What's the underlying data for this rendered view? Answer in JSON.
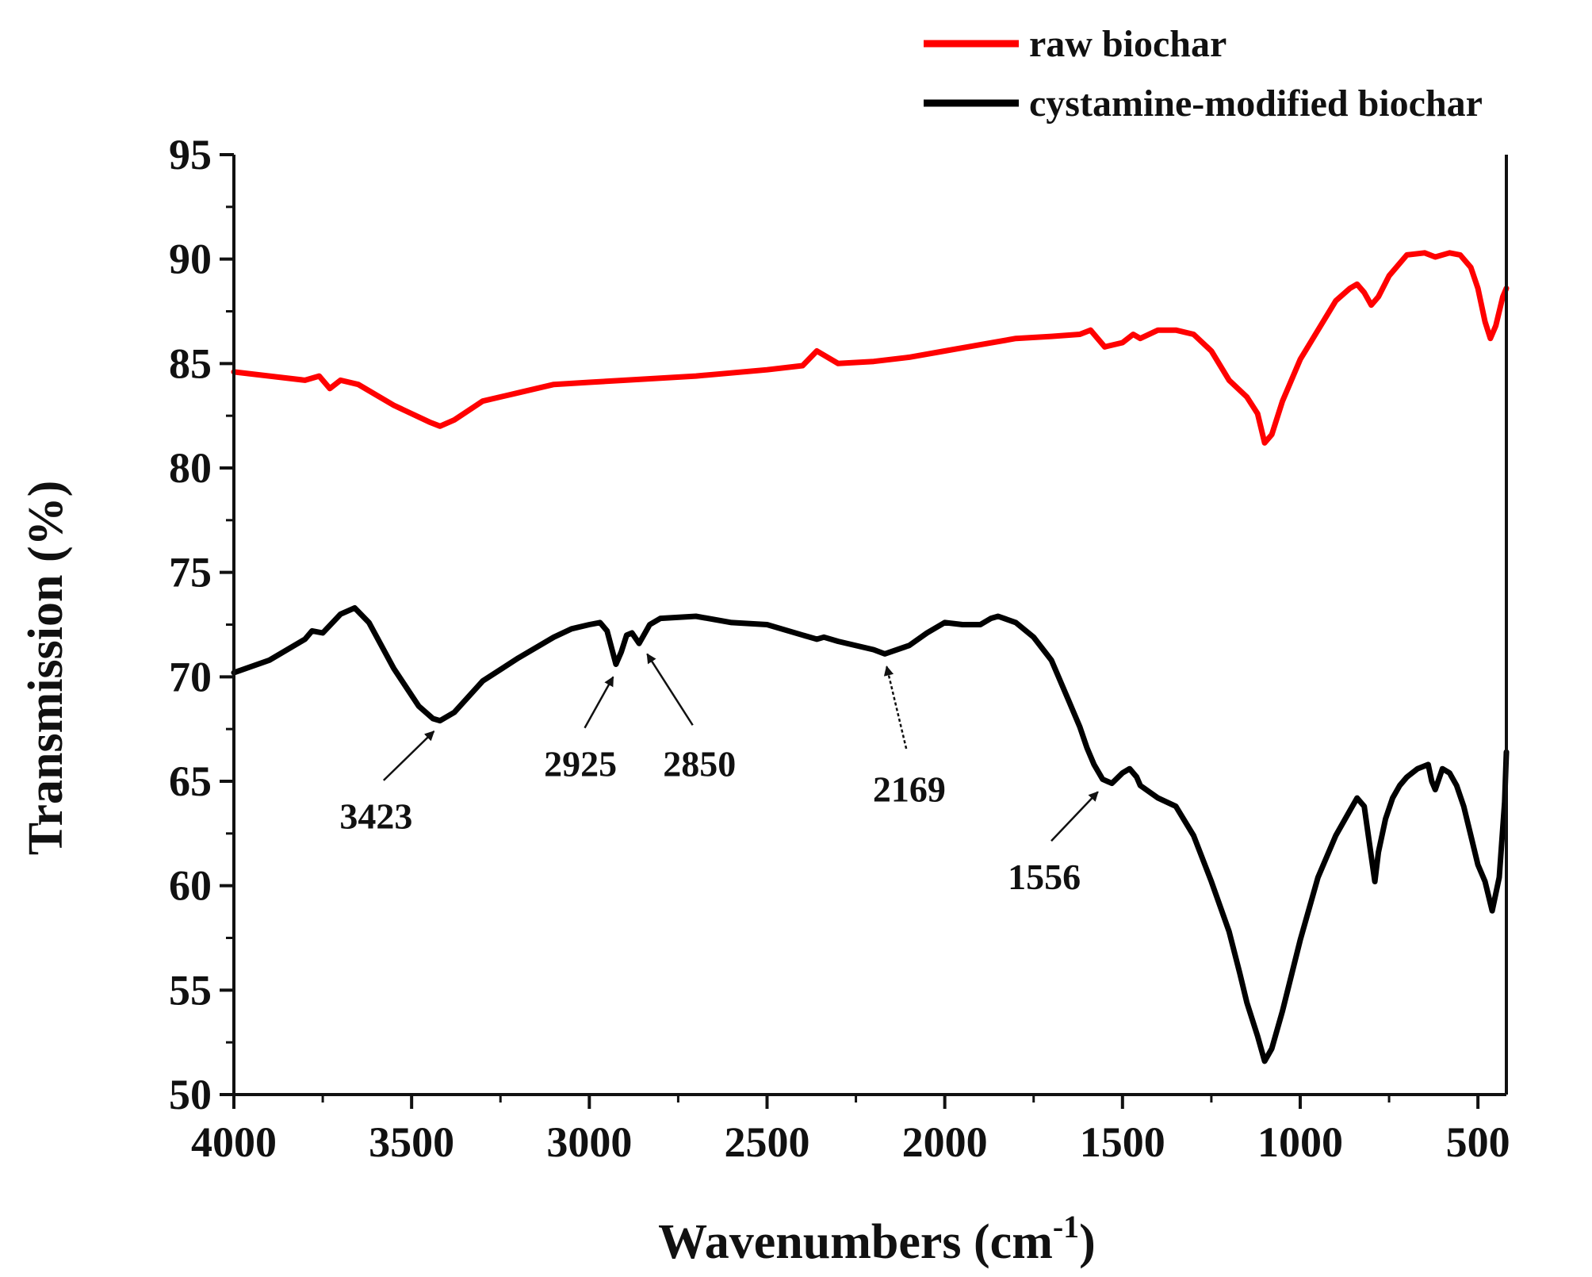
{
  "chart_data": {
    "type": "line",
    "title": "",
    "xlabel": "Wavenumbers (cm",
    "xlabel_sup": "-1",
    "xlabel_close": ")",
    "ylabel": "Transmission (%)",
    "xlim": [
      4000,
      420
    ],
    "ylim": [
      50,
      95
    ],
    "x_reversed": true,
    "x_ticks": [
      "4000",
      "3500",
      "3000",
      "2500",
      "2000",
      "1500",
      "1000",
      "500"
    ],
    "y_ticks": [
      "50",
      "55",
      "60",
      "65",
      "70",
      "75",
      "80",
      "85",
      "90",
      "95"
    ],
    "grid": false,
    "legend_position": "top-right (outside plot)",
    "series": [
      {
        "name": "raw biochar",
        "color": "#ff0000",
        "x": [
          4000,
          3900,
          3800,
          3760,
          3730,
          3700,
          3650,
          3550,
          3450,
          3420,
          3380,
          3300,
          3200,
          3100,
          3000,
          2900,
          2700,
          2500,
          2400,
          2360,
          2330,
          2300,
          2200,
          2100,
          2000,
          1900,
          1800,
          1700,
          1620,
          1590,
          1550,
          1500,
          1470,
          1450,
          1400,
          1350,
          1300,
          1250,
          1200,
          1150,
          1120,
          1100,
          1080,
          1050,
          1000,
          950,
          900,
          860,
          840,
          820,
          800,
          780,
          750,
          700,
          650,
          620,
          580,
          550,
          520,
          500,
          480,
          465,
          450,
          430,
          420
        ],
        "y": [
          84.6,
          84.4,
          84.2,
          84.4,
          83.8,
          84.2,
          84.0,
          83.0,
          82.2,
          82.0,
          82.3,
          83.2,
          83.6,
          84.0,
          84.1,
          84.2,
          84.4,
          84.7,
          84.9,
          85.6,
          85.3,
          85.0,
          85.1,
          85.3,
          85.6,
          85.9,
          86.2,
          86.3,
          86.4,
          86.6,
          85.8,
          86.0,
          86.4,
          86.2,
          86.6,
          86.6,
          86.4,
          85.6,
          84.2,
          83.4,
          82.6,
          81.2,
          81.6,
          83.2,
          85.2,
          86.6,
          88.0,
          88.6,
          88.8,
          88.4,
          87.8,
          88.2,
          89.2,
          90.2,
          90.3,
          90.1,
          90.3,
          90.2,
          89.6,
          88.6,
          87.0,
          86.2,
          86.8,
          88.2,
          88.6
        ]
      },
      {
        "name": "cystamine-modified biochar",
        "color": "#000000",
        "x": [
          4000,
          3900,
          3800,
          3780,
          3750,
          3700,
          3660,
          3620,
          3550,
          3480,
          3440,
          3420,
          3380,
          3300,
          3200,
          3100,
          3050,
          3000,
          2970,
          2950,
          2925,
          2910,
          2895,
          2880,
          2860,
          2850,
          2830,
          2800,
          2700,
          2600,
          2500,
          2400,
          2360,
          2340,
          2300,
          2200,
          2169,
          2100,
          2050,
          2000,
          1950,
          1900,
          1870,
          1850,
          1800,
          1750,
          1700,
          1650,
          1620,
          1600,
          1580,
          1556,
          1530,
          1500,
          1480,
          1460,
          1450,
          1400,
          1350,
          1300,
          1250,
          1200,
          1170,
          1150,
          1120,
          1100,
          1080,
          1050,
          1000,
          950,
          900,
          860,
          840,
          820,
          800,
          790,
          780,
          760,
          740,
          720,
          700,
          670,
          640,
          630,
          620,
          600,
          580,
          560,
          540,
          520,
          500,
          480,
          460,
          440,
          425,
          420
        ],
        "y": [
          70.2,
          70.8,
          71.8,
          72.2,
          72.1,
          73.0,
          73.3,
          72.6,
          70.4,
          68.6,
          68.0,
          67.9,
          68.3,
          69.8,
          70.9,
          71.9,
          72.3,
          72.5,
          72.6,
          72.2,
          70.6,
          71.2,
          72.0,
          72.1,
          71.6,
          71.9,
          72.5,
          72.8,
          72.9,
          72.6,
          72.5,
          72.0,
          71.8,
          71.9,
          71.7,
          71.3,
          71.1,
          71.5,
          72.1,
          72.6,
          72.5,
          72.5,
          72.8,
          72.9,
          72.6,
          71.9,
          70.8,
          68.8,
          67.6,
          66.6,
          65.8,
          65.1,
          64.9,
          65.4,
          65.6,
          65.2,
          64.8,
          64.2,
          63.8,
          62.4,
          60.2,
          57.8,
          55.8,
          54.4,
          52.8,
          51.6,
          52.2,
          54.0,
          57.4,
          60.4,
          62.4,
          63.6,
          64.2,
          63.8,
          61.4,
          60.2,
          61.6,
          63.2,
          64.2,
          64.8,
          65.2,
          65.6,
          65.8,
          65.0,
          64.6,
          65.6,
          65.4,
          64.8,
          63.8,
          62.4,
          61.0,
          60.2,
          58.8,
          60.4,
          64.0,
          66.4
        ]
      }
    ],
    "annotations": [
      {
        "label": "3423",
        "x": 3423,
        "y": 68.0,
        "tx": 3600,
        "ty": 63.5
      },
      {
        "label": "2925",
        "x": 2925,
        "y": 70.6,
        "tx": 3025,
        "ty": 66.0
      },
      {
        "label": "2850",
        "x": 2850,
        "y": 71.7,
        "tx": 2690,
        "ty": 66.0
      },
      {
        "label": "2169",
        "x": 2169,
        "y": 71.1,
        "tx": 2100,
        "ty": 64.8
      },
      {
        "label": "1556",
        "x": 1556,
        "y": 65.1,
        "tx": 1720,
        "ty": 60.6
      }
    ]
  }
}
